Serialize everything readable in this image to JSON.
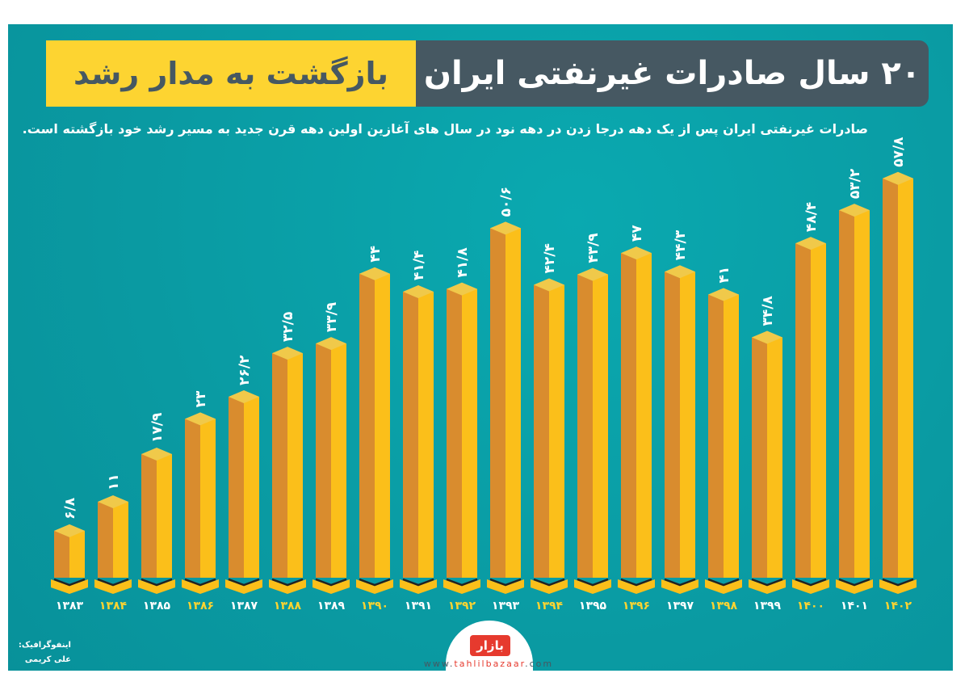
{
  "header": {
    "title_main": "۲۰ سال صادرات غیرنفتی ایران",
    "title_highlight": "بازگشت به مدار رشد",
    "subtitle": "صادرات غیرنفتی ایران پس از یک دهه درجا زدن در دهه نود در سال های آغازین اولین دهه قرن جدید به مسیر رشد خود بازگشته است."
  },
  "chart_data": {
    "type": "bar",
    "title": "۲۰ سال صادرات غیرنفتی ایران",
    "xlabel": "",
    "ylabel": "",
    "ylim": [
      0,
      60
    ],
    "grid": false,
    "categories": [
      "۱۳۸۳",
      "۱۳۸۴",
      "۱۳۸۵",
      "۱۳۸۶",
      "۱۳۸۷",
      "۱۳۸۸",
      "۱۳۸۹",
      "۱۳۹۰",
      "۱۳۹۱",
      "۱۳۹۲",
      "۱۳۹۳",
      "۱۳۹۴",
      "۱۳۹۵",
      "۱۳۹۶",
      "۱۳۹۷",
      "۱۳۹۸",
      "۱۳۹۹",
      "۱۴۰۰",
      "۱۴۰۱",
      "۱۴۰۲"
    ],
    "values": [
      6.8,
      11,
      17.9,
      23,
      26.2,
      32.5,
      33.9,
      44,
      41.4,
      41.8,
      50.6,
      42.4,
      43.9,
      47,
      44.3,
      41,
      34.8,
      48.4,
      53.2,
      57.8
    ],
    "data_labels": [
      "۶/۸",
      "۱۱",
      "۱۷/۹",
      "۲۳",
      "۲۶/۲",
      "۳۲/۵",
      "۳۳/۹",
      "۴۴",
      "۴۱/۴",
      "۴۱/۸",
      "۵۰/۶",
      "۴۲/۴",
      "۴۳/۹",
      "۴۷",
      "۴۴/۳",
      "۴۱",
      "۳۴/۸",
      "۴۸/۴",
      "۵۳/۲",
      "۵۷/۸"
    ],
    "colors": {
      "front": "#d98c2e",
      "side": "#fbbf1a",
      "top": "#f0c94a",
      "label_alt": "#fdd431"
    }
  },
  "footer": {
    "credit_label": "اینفوگرافیک:",
    "credit_name": "علی کریمی",
    "logo_text": "بازار",
    "url_prefix": "www.",
    "url_brand": "tahlilbazaar",
    "url_suffix": ".com"
  }
}
